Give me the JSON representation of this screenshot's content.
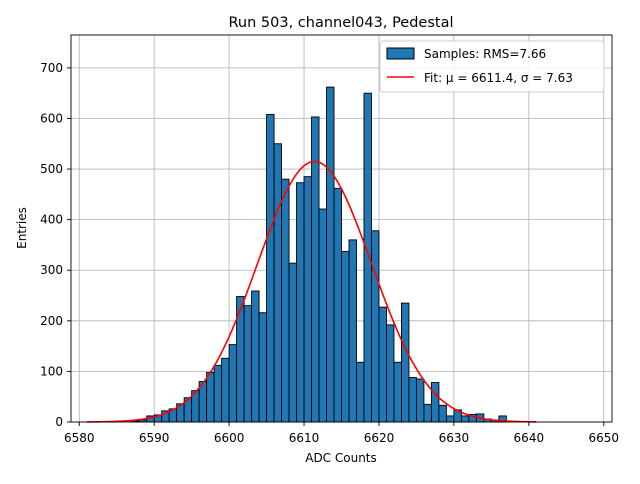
{
  "chart_data": {
    "type": "histogram",
    "title": "Run 503, channel043, Pedestal",
    "xlabel": "ADC Counts",
    "ylabel": "Entries",
    "xlim": [
      6578.9,
      6651.1
    ],
    "ylim": [
      0,
      765
    ],
    "grid": true,
    "legend_position": "top-right",
    "x_ticks": [
      6580,
      6590,
      6600,
      6610,
      6620,
      6630,
      6640,
      6650
    ],
    "y_ticks": [
      0,
      100,
      200,
      300,
      400,
      500,
      600,
      700
    ],
    "histogram": {
      "name": "Samples: RMS=7.66",
      "color": "#1f77b4",
      "edge_color": "#000000",
      "bin_edges": [
        6587,
        6588,
        6589,
        6590,
        6591,
        6592,
        6593,
        6594,
        6595,
        6596,
        6597,
        6598,
        6599,
        6600,
        6601,
        6602,
        6603,
        6604,
        6605,
        6606,
        6607,
        6608,
        6609,
        6610,
        6611,
        6612,
        6613,
        6614,
        6615,
        6616,
        6617,
        6618,
        6619,
        6620,
        6621,
        6622,
        6623,
        6624,
        6625,
        6626,
        6627,
        6628,
        6629,
        6630,
        6631,
        6632,
        6633,
        6634,
        6635,
        6636,
        6637
      ],
      "counts": [
        2,
        4,
        12,
        14,
        22,
        26,
        36,
        48,
        62,
        80,
        98,
        112,
        126,
        153,
        248,
        230,
        259,
        216,
        608,
        550,
        480,
        314,
        473,
        485,
        603,
        421,
        662,
        462,
        337,
        360,
        118,
        650,
        378,
        227,
        192,
        118,
        235,
        88,
        85,
        35,
        78,
        33,
        12,
        24,
        12,
        15,
        16,
        6,
        4,
        12
      ]
    },
    "fit": {
      "name": "Fit: μ = 6611.4, σ = 7.63",
      "mu": 6611.4,
      "sigma": 7.63,
      "amplitude": 515,
      "x_range": [
        6581,
        6641
      ],
      "color": "#ff0000"
    }
  }
}
